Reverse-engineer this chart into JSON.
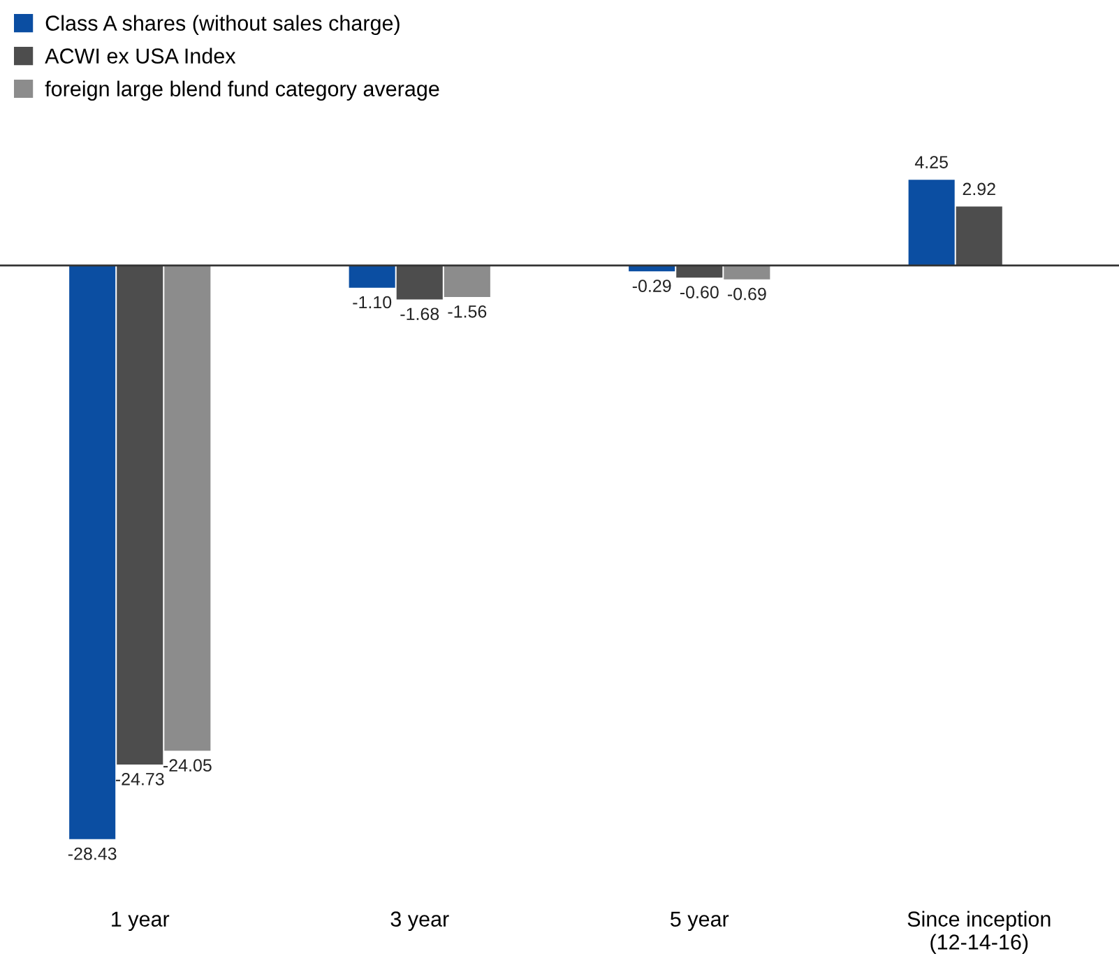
{
  "chart_data": {
    "type": "bar",
    "categories": [
      "1 year",
      "3 year",
      "5 year",
      "Since inception\n(12-14-16)"
    ],
    "series": [
      {
        "name": "Class A shares (without sales charge)",
        "color": "#0b4ea2",
        "values": [
          -28.43,
          -1.1,
          -0.29,
          4.25
        ],
        "value_labels": [
          "-28.43",
          "-1.10",
          "-0.29",
          "4.25"
        ]
      },
      {
        "name": "ACWI ex USA Index",
        "color": "#4d4d4d",
        "values": [
          -24.73,
          -1.68,
          -0.6,
          2.92
        ],
        "value_labels": [
          "-24.73",
          "-1.68",
          "-0.60",
          "2.92"
        ]
      },
      {
        "name": "foreign large blend fund category average",
        "color": "#8c8c8c",
        "values": [
          -24.05,
          -1.56,
          -0.69,
          null
        ],
        "value_labels": [
          "-24.05",
          "-1.56",
          "-0.69",
          null
        ]
      }
    ],
    "data_labels": true,
    "legend": "top left",
    "grid": false
  }
}
